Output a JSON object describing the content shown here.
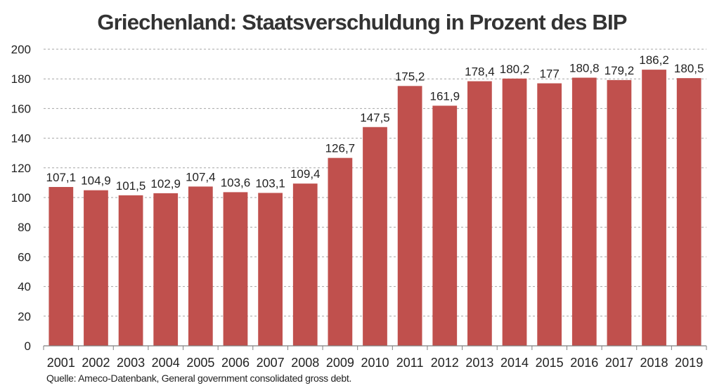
{
  "title": "Griechenland: Staatsverschuldung in Prozent des BIP",
  "source": "Quelle: Ameco-Datenbank, General government consolidated gross debt.",
  "colors": {
    "bar": "#c0504d",
    "grid": "#a6a6a6",
    "axis": "#7f7f7f"
  },
  "chart_data": {
    "type": "bar",
    "title": "Griechenland: Staatsverschuldung in Prozent des BIP",
    "xlabel": "",
    "ylabel": "",
    "ylim": [
      0,
      200
    ],
    "yticks": [
      "0",
      "20",
      "40",
      "60",
      "80",
      "100",
      "120",
      "140",
      "160",
      "180",
      "200"
    ],
    "grid": true,
    "categories": [
      "2001",
      "2002",
      "2003",
      "2004",
      "2005",
      "2006",
      "2007",
      "2008",
      "2009",
      "2010",
      "2011",
      "2012",
      "2013",
      "2014",
      "2015",
      "2016",
      "2017",
      "2018",
      "2019"
    ],
    "values": [
      107.1,
      104.9,
      101.5,
      102.9,
      107.4,
      103.6,
      103.1,
      109.4,
      126.7,
      147.5,
      175.2,
      161.9,
      178.4,
      180.2,
      177,
      180.8,
      179.2,
      186.2,
      180.5
    ],
    "value_labels": [
      "107,1",
      "104,9",
      "101,5",
      "102,9",
      "107,4",
      "103,6",
      "103,1",
      "109,4",
      "126,7",
      "147,5",
      "175,2",
      "161,9",
      "178,4",
      "180,2",
      "177",
      "180,8",
      "179,2",
      "186,2",
      "180,5"
    ]
  }
}
